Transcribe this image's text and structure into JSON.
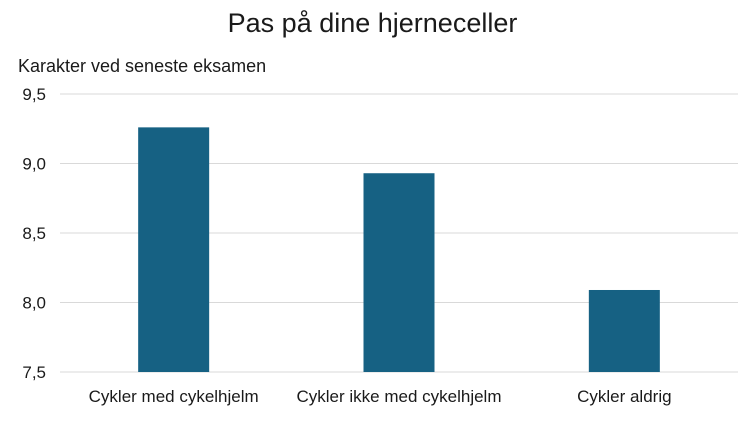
{
  "chart_data": {
    "type": "bar",
    "title": "Pas på dine hjerneceller",
    "ylabel": "Karakter ved seneste eksamen",
    "xlabel": "",
    "categories": [
      "Cykler med cykelhjelm",
      "Cykler ikke med cykelhjelm",
      "Cykler aldrig"
    ],
    "values": [
      9.26,
      8.93,
      8.09
    ],
    "ylim": [
      7.5,
      9.5
    ],
    "yticks": [
      "7,5",
      "8,0",
      "8,5",
      "9,0",
      "9,5"
    ],
    "grid": true,
    "legend": "none",
    "bar_color": "#166183"
  }
}
